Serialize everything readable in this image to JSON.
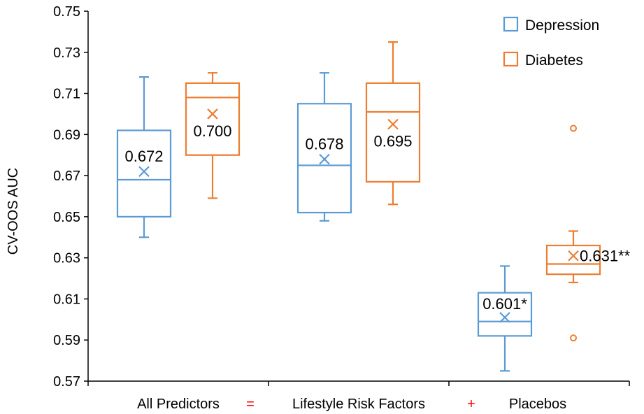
{
  "chart_data": {
    "type": "boxplot",
    "ylabel": "CV-OOS AUC",
    "ylim": [
      0.57,
      0.75
    ],
    "yticks": [
      "0.57",
      "0.59",
      "0.61",
      "0.63",
      "0.65",
      "0.67",
      "0.69",
      "0.71",
      "0.73",
      "0.75"
    ],
    "categories": [
      "All Predictors",
      "Lifestyle Risk Factors",
      "Placebos"
    ],
    "separators": [
      "=",
      "+"
    ],
    "separator_color": "#ff0000",
    "legend": {
      "position": "top-right"
    },
    "series": [
      {
        "name": "Depression",
        "color": "#5b9bd5",
        "boxes": [
          {
            "category": "All Predictors",
            "whisker_low": 0.64,
            "q1": 0.65,
            "median": 0.668,
            "q3": 0.692,
            "whisker_high": 0.718,
            "mean": 0.672,
            "mean_label": "0.672",
            "outliers": []
          },
          {
            "category": "Lifestyle Risk Factors",
            "whisker_low": 0.648,
            "q1": 0.652,
            "median": 0.675,
            "q3": 0.705,
            "whisker_high": 0.72,
            "mean": 0.678,
            "mean_label": "0.678",
            "outliers": []
          },
          {
            "category": "Placebos",
            "whisker_low": 0.575,
            "q1": 0.592,
            "median": 0.599,
            "q3": 0.613,
            "whisker_high": 0.626,
            "mean": 0.601,
            "mean_label": "0.601*",
            "outliers": []
          }
        ]
      },
      {
        "name": "Diabetes",
        "color": "#ed7d31",
        "boxes": [
          {
            "category": "All Predictors",
            "whisker_low": 0.659,
            "q1": 0.68,
            "median": 0.708,
            "q3": 0.715,
            "whisker_high": 0.72,
            "mean": 0.7,
            "mean_label": "0.700",
            "outliers": []
          },
          {
            "category": "Lifestyle Risk Factors",
            "whisker_low": 0.656,
            "q1": 0.667,
            "median": 0.701,
            "q3": 0.715,
            "whisker_high": 0.735,
            "mean": 0.695,
            "mean_label": "0.695",
            "outliers": []
          },
          {
            "category": "Placebos",
            "whisker_low": 0.618,
            "q1": 0.622,
            "median": 0.627,
            "q3": 0.636,
            "whisker_high": 0.643,
            "mean": 0.631,
            "mean_label": "0.631**",
            "outliers": [
              0.693,
              0.591
            ]
          }
        ]
      }
    ]
  }
}
